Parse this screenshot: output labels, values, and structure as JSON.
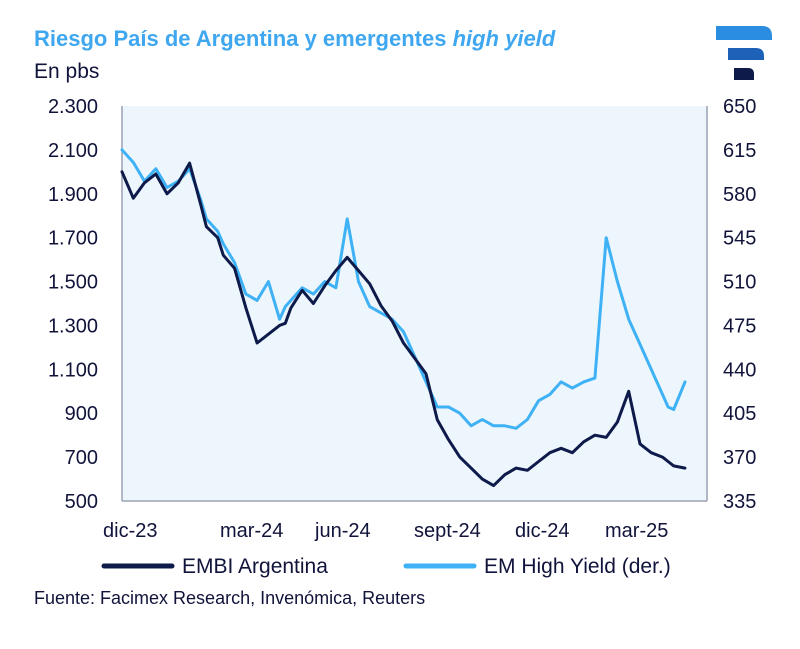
{
  "title": {
    "main": "Riesgo País de Argentina y emergentes ",
    "italic": "high yield"
  },
  "subtitle": "En pbs",
  "source": "Fuente: Facimex Research, Invenómica, Reuters",
  "colors": {
    "embi": "#0d1a4a",
    "emhy": "#3fb1f5",
    "plot_bg": "#eef6fd",
    "axis": "#9aa0b4",
    "logo_dark": "#0d1a4a",
    "logo_light": "#2a8de0"
  },
  "chart_data": {
    "type": "line",
    "title": "Riesgo País de Argentina y emergentes high yield",
    "ylabel": "En pbs",
    "x_labels": [
      "dic-23",
      "mar-24",
      "jun-24",
      "sept-24",
      "dic-24",
      "mar-25"
    ],
    "y_left": {
      "ticks": [
        "2.300",
        "2.100",
        "1.900",
        "1.700",
        "1.500",
        "1.300",
        "1.100",
        "900",
        "700",
        "500"
      ],
      "lim": [
        500,
        2300
      ]
    },
    "y_right": {
      "ticks": [
        "650",
        "615",
        "580",
        "545",
        "510",
        "475",
        "440",
        "405",
        "370",
        "335"
      ],
      "lim": [
        335,
        650
      ]
    },
    "legend": [
      "EMBI Argentina",
      "EM High Yield (der.)"
    ],
    "series": [
      {
        "name": "EMBI Argentina",
        "axis": "left",
        "x": [
          0,
          0.02,
          0.04,
          0.06,
          0.08,
          0.1,
          0.12,
          0.14,
          0.15,
          0.17,
          0.18,
          0.2,
          0.22,
          0.24,
          0.26,
          0.28,
          0.29,
          0.3,
          0.32,
          0.34,
          0.36,
          0.38,
          0.4,
          0.42,
          0.44,
          0.46,
          0.48,
          0.5,
          0.52,
          0.54,
          0.56,
          0.58,
          0.6,
          0.62,
          0.64,
          0.66,
          0.68,
          0.7,
          0.72,
          0.74,
          0.76,
          0.78,
          0.8,
          0.82,
          0.84,
          0.86,
          0.88,
          0.9,
          0.92,
          0.94,
          0.96,
          0.97,
          0.98,
          1.0
        ],
        "values": [
          2000,
          1880,
          1950,
          1990,
          1900,
          1950,
          2040,
          1850,
          1750,
          1700,
          1620,
          1560,
          1380,
          1220,
          1260,
          1300,
          1310,
          1380,
          1460,
          1400,
          1480,
          1550,
          1610,
          1550,
          1490,
          1390,
          1320,
          1220,
          1150,
          1080,
          870,
          780,
          700,
          650,
          600,
          570,
          620,
          650,
          640,
          680,
          720,
          740,
          720,
          770,
          800,
          790,
          860,
          1000,
          760,
          720,
          700,
          680,
          660,
          650
        ]
      },
      {
        "name": "EM High Yield (der.)",
        "axis": "right",
        "x": [
          0,
          0.02,
          0.04,
          0.06,
          0.08,
          0.1,
          0.12,
          0.14,
          0.15,
          0.17,
          0.18,
          0.2,
          0.22,
          0.24,
          0.26,
          0.28,
          0.29,
          0.3,
          0.32,
          0.34,
          0.36,
          0.38,
          0.4,
          0.42,
          0.44,
          0.46,
          0.48,
          0.5,
          0.52,
          0.54,
          0.56,
          0.58,
          0.6,
          0.62,
          0.64,
          0.66,
          0.68,
          0.7,
          0.72,
          0.74,
          0.76,
          0.78,
          0.8,
          0.82,
          0.84,
          0.86,
          0.88,
          0.9,
          0.92,
          0.94,
          0.96,
          0.97,
          0.98,
          1.0
        ],
        "values": [
          615,
          605,
          590,
          600,
          585,
          590,
          600,
          575,
          560,
          550,
          540,
          525,
          500,
          495,
          510,
          480,
          490,
          495,
          505,
          500,
          510,
          505,
          560,
          510,
          490,
          485,
          480,
          470,
          450,
          430,
          410,
          410,
          405,
          395,
          400,
          395,
          395,
          393,
          400,
          415,
          420,
          430,
          425,
          430,
          433,
          545,
          510,
          480,
          460,
          440,
          420,
          410,
          408,
          430
        ]
      }
    ]
  }
}
